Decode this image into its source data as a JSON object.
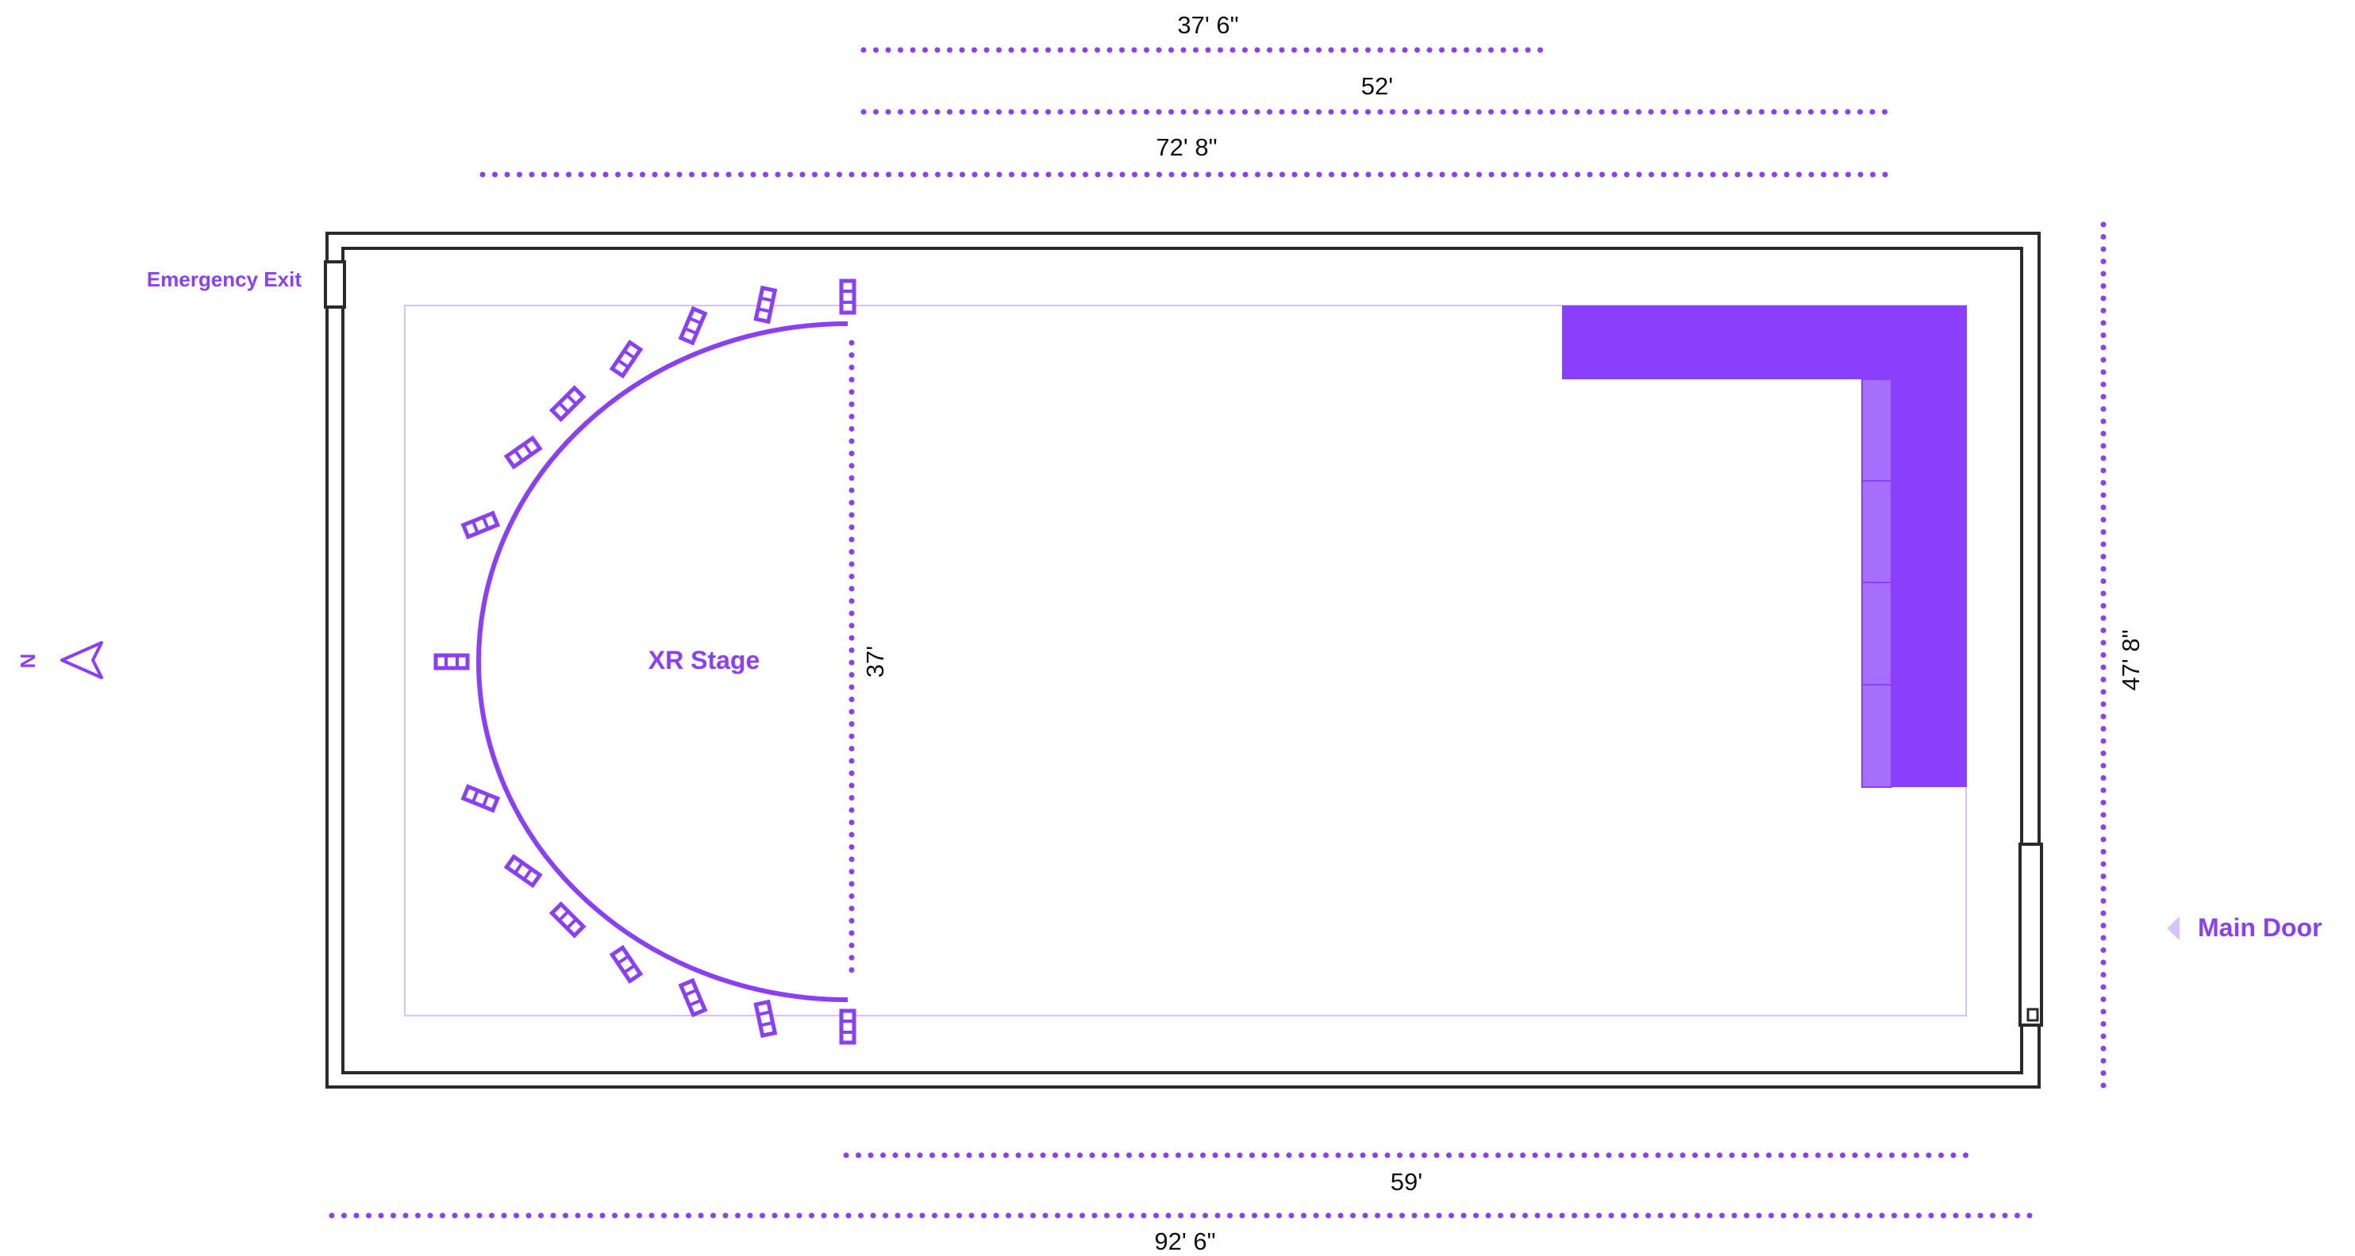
{
  "labels": {
    "emergency_exit": "Emergency Exit",
    "main_door": "Main Door",
    "stage": "XR Stage",
    "north": "N"
  },
  "dimensions": {
    "top_1": "37' 6\"",
    "top_2": "52'",
    "top_3": "72' 8\"",
    "stage_depth": "37'",
    "right_height": "47' 8\"",
    "bottom_1": "59'",
    "bottom_2": "92' 6\""
  },
  "colors": {
    "accent": "#8a3ffc",
    "accent_light": "#a66ffb",
    "accent_pale": "#d7c2fb",
    "wall": "#2a2a2a"
  },
  "icons": [
    "north-arrow-icon",
    "door-arrow-icon",
    "stage-light-icon"
  ]
}
